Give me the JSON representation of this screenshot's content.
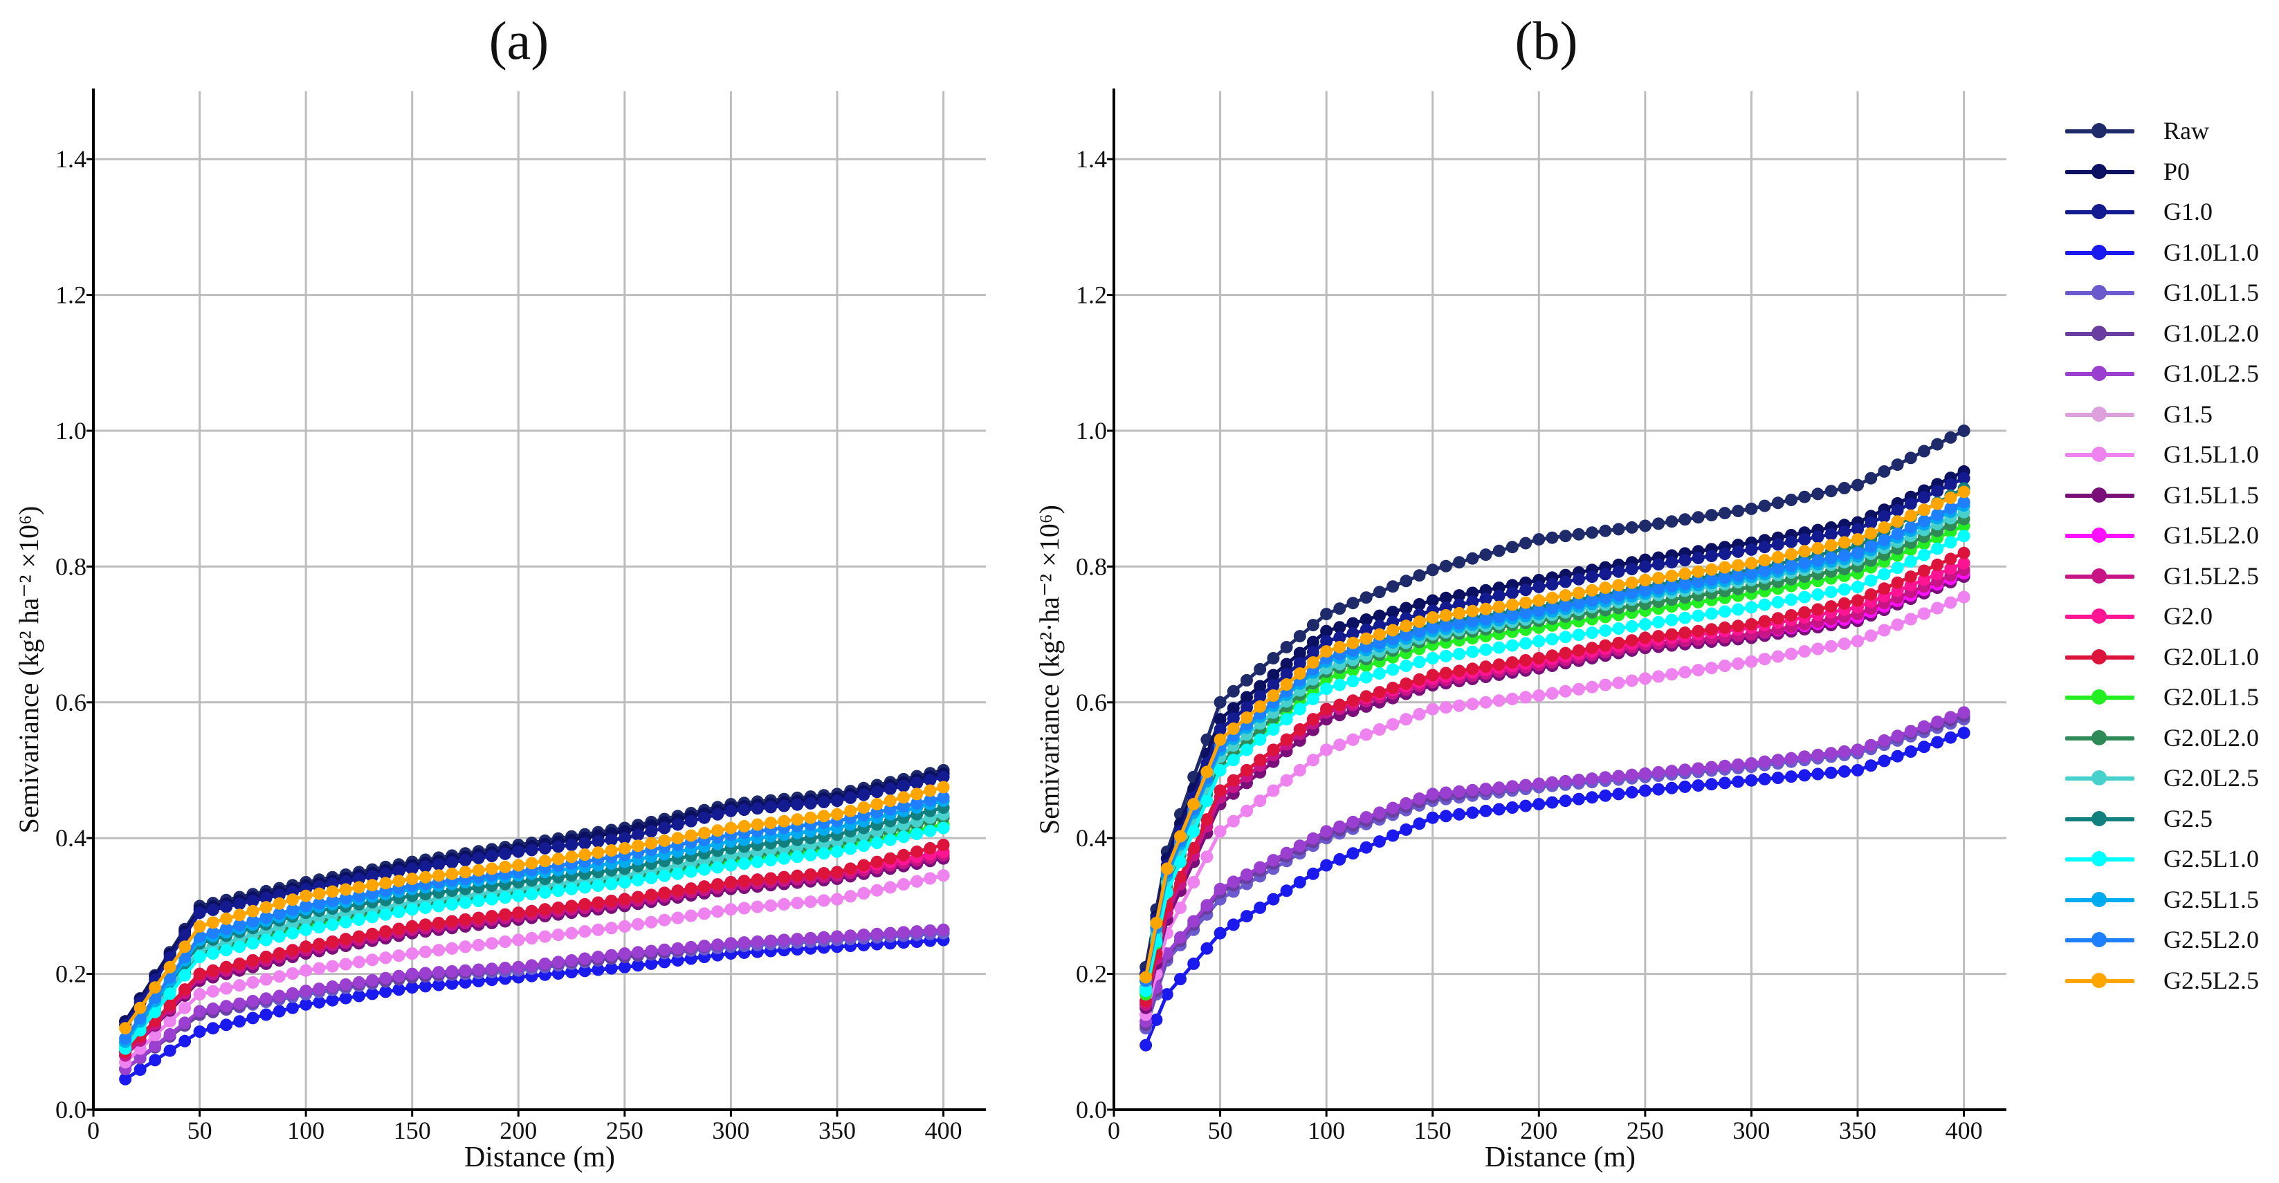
{
  "series_meta": [
    {
      "name": "Raw",
      "color": "#1f2a6b"
    },
    {
      "name": "P0",
      "color": "#0c1060"
    },
    {
      "name": "G1.0",
      "color": "#141a8f"
    },
    {
      "name": "G1.0L1.0",
      "color": "#1a1aee"
    },
    {
      "name": "G1.0L1.5",
      "color": "#6a5acd"
    },
    {
      "name": "G1.0L2.0",
      "color": "#6a3ea0"
    },
    {
      "name": "G1.0L2.5",
      "color": "#9b3fd0"
    },
    {
      "name": "G1.5",
      "color": "#dda0dd"
    },
    {
      "name": "G1.5L1.0",
      "color": "#ee82ee"
    },
    {
      "name": "G1.5L1.5",
      "color": "#7a0f7a"
    },
    {
      "name": "G1.5L2.0",
      "color": "#ff10ff"
    },
    {
      "name": "G1.5L2.5",
      "color": "#c71585"
    },
    {
      "name": "G2.0",
      "color": "#ff1493"
    },
    {
      "name": "G2.0L1.0",
      "color": "#dc143c"
    },
    {
      "name": "G2.0L1.5",
      "color": "#22ee22"
    },
    {
      "name": "G2.0L2.0",
      "color": "#2e8b57"
    },
    {
      "name": "G2.0L2.5",
      "color": "#48d1cc"
    },
    {
      "name": "G2.5",
      "color": "#138080"
    },
    {
      "name": "G2.5L1.0",
      "color": "#00ffff"
    },
    {
      "name": "G2.5L1.5",
      "color": "#00aaee"
    },
    {
      "name": "G2.5L2.0",
      "color": "#1e7fff"
    },
    {
      "name": "G2.5L2.5",
      "color": "#ffa500"
    }
  ],
  "chart_data": [
    {
      "type": "line",
      "title": "(a)",
      "xlabel": "Distance (m)",
      "ylabel": "Semivariance (kg² ha⁻² ×10⁶)",
      "xlim": [
        0,
        420
      ],
      "ylim": [
        0,
        1.5
      ],
      "xticks": [
        0,
        50,
        100,
        150,
        200,
        250,
        300,
        350,
        400
      ],
      "yticks": [
        0.0,
        0.2,
        0.4,
        0.6,
        0.8,
        1.0,
        1.2,
        1.4
      ],
      "ytick_labels": [
        "0.0",
        "0.2",
        "0.4",
        "0.6",
        "0.8",
        "1.0",
        "1.2",
        "1.4"
      ],
      "grid": true,
      "x": [
        15,
        50,
        100,
        150,
        200,
        250,
        300,
        350,
        400
      ],
      "series": [
        {
          "name": "Raw",
          "values": [
            0.13,
            0.3,
            0.335,
            0.365,
            0.39,
            0.415,
            0.45,
            0.465,
            0.5
          ]
        },
        {
          "name": "P0",
          "values": [
            0.13,
            0.295,
            0.33,
            0.36,
            0.385,
            0.41,
            0.445,
            0.46,
            0.495
          ]
        },
        {
          "name": "G1.0",
          "values": [
            0.125,
            0.29,
            0.325,
            0.355,
            0.38,
            0.4,
            0.44,
            0.455,
            0.49
          ]
        },
        {
          "name": "G1.0L1.0",
          "values": [
            0.045,
            0.115,
            0.155,
            0.18,
            0.195,
            0.21,
            0.23,
            0.24,
            0.25
          ]
        },
        {
          "name": "G1.0L1.5",
          "values": [
            0.06,
            0.14,
            0.17,
            0.195,
            0.205,
            0.225,
            0.24,
            0.25,
            0.26
          ]
        },
        {
          "name": "G1.0L2.0",
          "values": [
            0.06,
            0.14,
            0.175,
            0.195,
            0.21,
            0.225,
            0.245,
            0.255,
            0.265
          ]
        },
        {
          "name": "G1.0L2.5",
          "values": [
            0.06,
            0.145,
            0.175,
            0.2,
            0.21,
            0.23,
            0.245,
            0.255,
            0.265
          ]
        },
        {
          "name": "G1.5",
          "values": [
            0.07,
            0.17,
            0.205,
            0.23,
            0.25,
            0.27,
            0.295,
            0.31,
            0.345
          ]
        },
        {
          "name": "G1.5L1.0",
          "values": [
            0.07,
            0.17,
            0.205,
            0.23,
            0.25,
            0.27,
            0.295,
            0.31,
            0.345
          ]
        },
        {
          "name": "G1.5L1.5",
          "values": [
            0.08,
            0.19,
            0.23,
            0.26,
            0.28,
            0.3,
            0.325,
            0.34,
            0.37
          ]
        },
        {
          "name": "G1.5L2.0",
          "values": [
            0.08,
            0.195,
            0.235,
            0.265,
            0.285,
            0.305,
            0.33,
            0.345,
            0.375
          ]
        },
        {
          "name": "G1.5L2.5",
          "values": [
            0.08,
            0.195,
            0.235,
            0.265,
            0.285,
            0.305,
            0.33,
            0.345,
            0.375
          ]
        },
        {
          "name": "G2.0",
          "values": [
            0.085,
            0.2,
            0.24,
            0.27,
            0.29,
            0.31,
            0.335,
            0.35,
            0.38
          ]
        },
        {
          "name": "G2.0L1.0",
          "values": [
            0.085,
            0.2,
            0.24,
            0.27,
            0.29,
            0.31,
            0.335,
            0.35,
            0.39
          ]
        },
        {
          "name": "G2.0L1.5",
          "values": [
            0.09,
            0.225,
            0.27,
            0.295,
            0.315,
            0.335,
            0.365,
            0.385,
            0.42
          ]
        },
        {
          "name": "G2.0L2.0",
          "values": [
            0.095,
            0.23,
            0.275,
            0.3,
            0.32,
            0.34,
            0.37,
            0.39,
            0.43
          ]
        },
        {
          "name": "G2.0L2.5",
          "values": [
            0.095,
            0.235,
            0.28,
            0.305,
            0.325,
            0.345,
            0.375,
            0.395,
            0.435
          ]
        },
        {
          "name": "G2.5",
          "values": [
            0.1,
            0.245,
            0.29,
            0.315,
            0.335,
            0.355,
            0.385,
            0.405,
            0.445
          ]
        },
        {
          "name": "G2.5L1.0",
          "values": [
            0.09,
            0.225,
            0.265,
            0.295,
            0.315,
            0.335,
            0.36,
            0.38,
            0.415
          ]
        },
        {
          "name": "G2.5L1.5",
          "values": [
            0.1,
            0.25,
            0.295,
            0.325,
            0.345,
            0.365,
            0.395,
            0.415,
            0.455
          ]
        },
        {
          "name": "G2.5L2.0",
          "values": [
            0.105,
            0.255,
            0.3,
            0.33,
            0.35,
            0.375,
            0.405,
            0.425,
            0.46
          ]
        },
        {
          "name": "G2.5L2.5",
          "values": [
            0.12,
            0.27,
            0.315,
            0.34,
            0.36,
            0.385,
            0.415,
            0.435,
            0.475
          ]
        }
      ]
    },
    {
      "type": "line",
      "title": "(b)",
      "xlabel": "Distance (m)",
      "ylabel": "Semivariance (kg²·ha⁻² ×10⁶)",
      "xlim": [
        0,
        420
      ],
      "ylim": [
        0,
        1.5
      ],
      "xticks": [
        0,
        50,
        100,
        150,
        200,
        250,
        300,
        350,
        400
      ],
      "yticks": [
        0.0,
        0.2,
        0.4,
        0.6,
        0.8,
        1.0,
        1.2,
        1.4
      ],
      "ytick_labels": [
        "0.0",
        "0.2",
        "0.4",
        "0.6",
        "0.8",
        "1.0",
        "1.2",
        "1.4"
      ],
      "grid": true,
      "x": [
        15,
        25,
        50,
        100,
        150,
        200,
        250,
        300,
        350,
        400
      ],
      "series": [
        {
          "name": "Raw",
          "values": [
            0.21,
            0.38,
            0.6,
            0.73,
            0.795,
            0.84,
            0.86,
            0.885,
            0.92,
            1.0
          ]
        },
        {
          "name": "P0",
          "values": [
            0.2,
            0.37,
            0.575,
            0.705,
            0.75,
            0.78,
            0.81,
            0.835,
            0.865,
            0.94
          ]
        },
        {
          "name": "G1.0",
          "values": [
            0.2,
            0.36,
            0.56,
            0.69,
            0.735,
            0.77,
            0.8,
            0.825,
            0.855,
            0.93
          ]
        },
        {
          "name": "G1.0L1.0",
          "values": [
            0.095,
            0.17,
            0.26,
            0.36,
            0.43,
            0.45,
            0.47,
            0.485,
            0.5,
            0.555
          ]
        },
        {
          "name": "G1.0L1.5",
          "values": [
            0.12,
            0.22,
            0.31,
            0.4,
            0.455,
            0.475,
            0.49,
            0.505,
            0.525,
            0.575
          ]
        },
        {
          "name": "G1.0L2.0",
          "values": [
            0.125,
            0.225,
            0.32,
            0.405,
            0.46,
            0.48,
            0.495,
            0.51,
            0.53,
            0.58
          ]
        },
        {
          "name": "G1.0L2.5",
          "values": [
            0.13,
            0.23,
            0.325,
            0.41,
            0.465,
            0.48,
            0.495,
            0.51,
            0.53,
            0.585
          ]
        },
        {
          "name": "G1.5",
          "values": [
            0.14,
            0.26,
            0.41,
            0.53,
            0.59,
            0.61,
            0.635,
            0.66,
            0.69,
            0.755
          ]
        },
        {
          "name": "G1.5L1.0",
          "values": [
            0.14,
            0.26,
            0.41,
            0.53,
            0.59,
            0.61,
            0.635,
            0.66,
            0.69,
            0.755
          ]
        },
        {
          "name": "G1.5L1.5",
          "values": [
            0.15,
            0.28,
            0.45,
            0.575,
            0.625,
            0.65,
            0.68,
            0.695,
            0.72,
            0.785
          ]
        },
        {
          "name": "G1.5L2.0",
          "values": [
            0.155,
            0.29,
            0.46,
            0.585,
            0.63,
            0.655,
            0.685,
            0.7,
            0.725,
            0.79
          ]
        },
        {
          "name": "G1.5L2.5",
          "values": [
            0.155,
            0.29,
            0.46,
            0.585,
            0.63,
            0.655,
            0.685,
            0.7,
            0.73,
            0.795
          ]
        },
        {
          "name": "G2.0",
          "values": [
            0.16,
            0.3,
            0.47,
            0.59,
            0.635,
            0.66,
            0.69,
            0.71,
            0.74,
            0.805
          ]
        },
        {
          "name": "G2.0L1.0",
          "values": [
            0.16,
            0.3,
            0.47,
            0.59,
            0.64,
            0.665,
            0.695,
            0.715,
            0.75,
            0.82
          ]
        },
        {
          "name": "G2.0L1.5",
          "values": [
            0.17,
            0.32,
            0.5,
            0.635,
            0.685,
            0.71,
            0.735,
            0.76,
            0.79,
            0.86
          ]
        },
        {
          "name": "G2.0L2.0",
          "values": [
            0.175,
            0.33,
            0.51,
            0.645,
            0.695,
            0.72,
            0.745,
            0.77,
            0.8,
            0.87
          ]
        },
        {
          "name": "G2.0L2.5",
          "values": [
            0.18,
            0.335,
            0.52,
            0.65,
            0.7,
            0.725,
            0.755,
            0.78,
            0.81,
            0.88
          ]
        },
        {
          "name": "G2.5",
          "values": [
            0.19,
            0.345,
            0.53,
            0.665,
            0.715,
            0.74,
            0.77,
            0.795,
            0.83,
            0.915
          ]
        },
        {
          "name": "G2.5L1.0",
          "values": [
            0.175,
            0.32,
            0.5,
            0.62,
            0.665,
            0.69,
            0.715,
            0.74,
            0.77,
            0.845
          ]
        },
        {
          "name": "G2.5L1.5",
          "values": [
            0.19,
            0.345,
            0.53,
            0.66,
            0.705,
            0.73,
            0.76,
            0.785,
            0.815,
            0.89
          ]
        },
        {
          "name": "G2.5L2.0",
          "values": [
            0.19,
            0.35,
            0.535,
            0.665,
            0.71,
            0.735,
            0.765,
            0.79,
            0.82,
            0.895
          ]
        },
        {
          "name": "G2.5L2.5",
          "values": [
            0.195,
            0.355,
            0.545,
            0.675,
            0.725,
            0.75,
            0.78,
            0.805,
            0.84,
            0.91
          ]
        }
      ]
    }
  ]
}
